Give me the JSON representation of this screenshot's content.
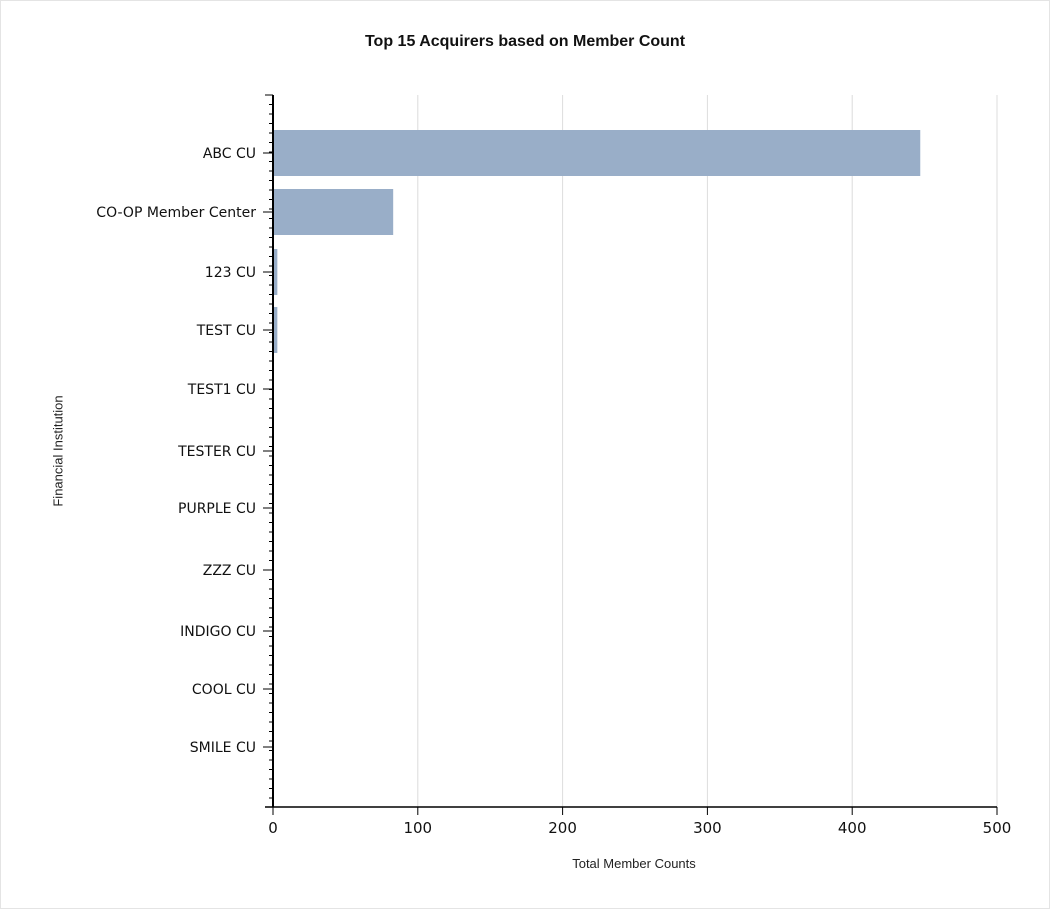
{
  "chart_data": {
    "type": "bar",
    "orientation": "horizontal",
    "title": "Top 15 Acquirers based on Member Count",
    "xlabel": "Total Member Counts",
    "ylabel": "Financial Institution",
    "categories": [
      "ABC CU",
      "CO-OP Member Center",
      "123 CU",
      "TEST CU",
      "TEST1 CU",
      "TESTER CU",
      "PURPLE CU",
      "ZZZ CU",
      "INDIGO CU",
      "COOL CU",
      "SMILE CU"
    ],
    "values": [
      447,
      83,
      3,
      3,
      0,
      0,
      0,
      0,
      0,
      0,
      0
    ],
    "xlim": [
      0,
      500
    ],
    "xticks": [
      0,
      100,
      200,
      300,
      400,
      500
    ],
    "grid": true,
    "legend": "none",
    "bar_color": "#99aec8"
  }
}
